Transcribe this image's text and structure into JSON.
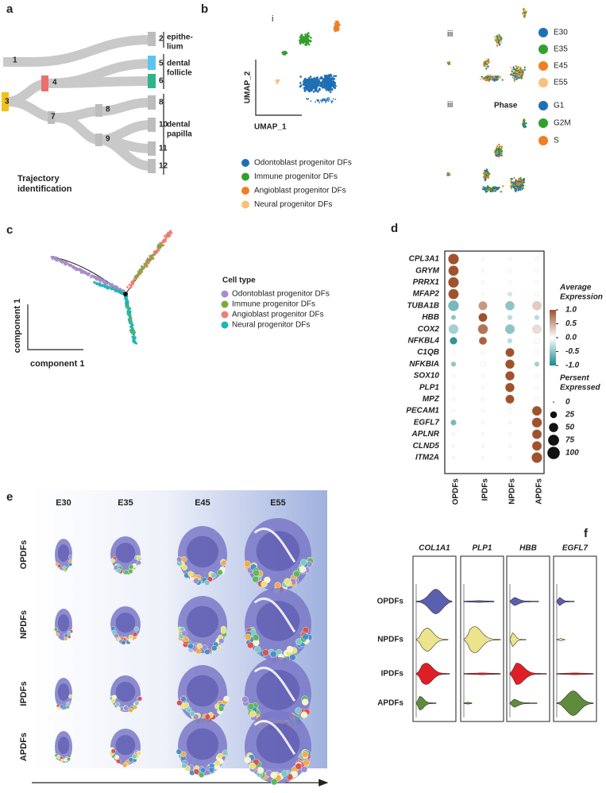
{
  "a": {
    "label": "a",
    "nodes": [
      "1",
      "2",
      "3",
      "4",
      "5",
      "6",
      "7",
      "8",
      "8",
      "9",
      "10",
      "11",
      "12"
    ],
    "groups": [
      {
        "lines": [
          "epithe-",
          "lium"
        ]
      },
      {
        "lines": [
          "dental",
          "follicle"
        ],
        "color": "#e02020"
      },
      {
        "lines": [
          "dental",
          "papilla"
        ]
      }
    ],
    "caption": [
      "Trajectory",
      "identification"
    ]
  },
  "b": {
    "label": "b",
    "umap": {
      "tag": "i",
      "y_label": "UMAP_2",
      "x_label": "UMAP_1",
      "legend": [
        {
          "name": "Odontoblast progenitor DFs",
          "color": "#1f6fb4"
        },
        {
          "name": "Immune progenitor DFs",
          "color": "#33a02c"
        },
        {
          "name": "Angioblast progenitor  DFs",
          "color": "#f07f22"
        },
        {
          "name": "Neural progenitor DFs",
          "color": "#f9c27a"
        }
      ]
    },
    "stage": {
      "tag": "iii",
      "legend": [
        {
          "name": "E30",
          "color": "#1f6fb4"
        },
        {
          "name": "E35",
          "color": "#33a02c"
        },
        {
          "name": "E45",
          "color": "#f07f22"
        },
        {
          "name": "E55",
          "color": "#f9c27a"
        }
      ]
    },
    "phase": {
      "tag": "iii",
      "title": "Phase",
      "legend": [
        {
          "name": "G1",
          "color": "#1f6fb4"
        },
        {
          "name": "G2M",
          "color": "#33a02c"
        },
        {
          "name": "S",
          "color": "#f07f22"
        }
      ]
    }
  },
  "c": {
    "label": "c",
    "legend_title": "Cell type",
    "legend": [
      {
        "name": "Odontoblast progenitor DFs",
        "color": "#a98cc8"
      },
      {
        "name": "Immune progenitor DFs",
        "color": "#7aab3c"
      },
      {
        "name": "Angioblast progenitor  DFs",
        "color": "#ef7e72"
      },
      {
        "name": "Neural progenitor DFs",
        "color": "#21b5b5"
      }
    ],
    "y_label": "component 1",
    "x_label": "component 1"
  },
  "d": {
    "label": "d",
    "genes": [
      "CPL3A1",
      "GRYM",
      "PRRX1",
      "MFAP2",
      "TUBA1B",
      "HBB",
      "COX2",
      "NFKBL4",
      "C1QB",
      "NFKBIA",
      "SOX10",
      "PLP1",
      "MPZ",
      "PECAM1",
      "EGFL7",
      "APLNR",
      "CLND5",
      "ITM2A"
    ],
    "groups": [
      "OPDFs",
      "IPDFs",
      "NPDFs",
      "APDFs"
    ],
    "percent": [
      [
        70,
        3,
        3,
        5
      ],
      [
        65,
        2,
        3,
        3
      ],
      [
        70,
        3,
        5,
        5
      ],
      [
        65,
        3,
        8,
        5
      ],
      [
        70,
        45,
        50,
        50
      ],
      [
        10,
        45,
        10,
        10
      ],
      [
        55,
        60,
        55,
        50
      ],
      [
        30,
        35,
        10,
        15
      ],
      [
        3,
        3,
        45,
        5
      ],
      [
        10,
        10,
        50,
        10
      ],
      [
        3,
        3,
        50,
        3
      ],
      [
        3,
        3,
        50,
        3
      ],
      [
        3,
        3,
        45,
        3
      ],
      [
        3,
        3,
        8,
        55
      ],
      [
        15,
        3,
        3,
        60
      ],
      [
        3,
        3,
        3,
        55
      ],
      [
        3,
        3,
        3,
        55
      ],
      [
        3,
        3,
        3,
        70
      ]
    ],
    "expression": [
      [
        1,
        0,
        0,
        0
      ],
      [
        1,
        0,
        0,
        0
      ],
      [
        1,
        0,
        0,
        0
      ],
      [
        1,
        0,
        -0.2,
        0
      ],
      [
        -0.6,
        0.6,
        -0.5,
        0.3
      ],
      [
        -0.5,
        1,
        -0.3,
        -0.3
      ],
      [
        -0.4,
        0.8,
        -0.5,
        0.2
      ],
      [
        -0.9,
        0.9,
        -0.3,
        0
      ],
      [
        0,
        0,
        1,
        0
      ],
      [
        -0.5,
        0,
        1,
        -0.4
      ],
      [
        0,
        0,
        1,
        0
      ],
      [
        0,
        0,
        1,
        0
      ],
      [
        0,
        0,
        1,
        0
      ],
      [
        0,
        0,
        0,
        1
      ],
      [
        -0.6,
        0,
        0,
        1
      ],
      [
        0,
        0,
        0,
        1
      ],
      [
        0,
        0,
        0,
        1
      ],
      [
        0,
        0,
        0,
        1
      ]
    ],
    "color_legend": {
      "title": [
        "Average",
        "Expression"
      ],
      "ticks": [
        {
          "value": 1,
          "label": "1.0"
        },
        0.5,
        {
          "value": 0,
          "label": "0.0"
        },
        -0.5,
        {
          "value": -1,
          "label": "-1.0"
        }
      ]
    },
    "size_legend": {
      "title": [
        "Persent",
        "Expressed"
      ],
      "ticks": [
        0,
        25,
        50,
        75,
        100
      ]
    }
  },
  "e": {
    "label": "e",
    "columns": [
      "E30",
      "E35",
      "E45",
      "E55"
    ],
    "rows": [
      "OPDFs",
      "NPDFs",
      "IPDFs",
      "APDFs"
    ]
  },
  "f": {
    "label": "f",
    "genes": [
      "COL1A1",
      "PLP1",
      "HBB",
      "EGFL7"
    ],
    "rows": [
      {
        "name": "OPDFs",
        "color": "#5a5fb0"
      },
      {
        "name": "NPDFs",
        "color": "#ece48c"
      },
      {
        "name": "IPDFs",
        "color": "#e01e26"
      },
      {
        "name": "APDFs",
        "color": "#5f8c3c"
      }
    ]
  }
}
